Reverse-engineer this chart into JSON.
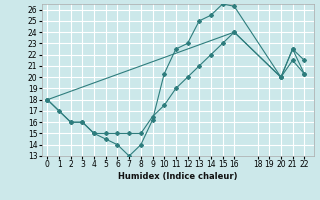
{
  "xlabel": "Humidex (Indice chaleur)",
  "bg_color": "#cce8ea",
  "grid_color": "#ffffff",
  "line_color": "#2e7d7d",
  "ylim": [
    13,
    26.5
  ],
  "xlim": [
    -0.5,
    22.8
  ],
  "yticks": [
    13,
    14,
    15,
    16,
    17,
    18,
    19,
    20,
    21,
    22,
    23,
    24,
    25,
    26
  ],
  "xticks": [
    0,
    1,
    2,
    3,
    4,
    5,
    6,
    7,
    8,
    9,
    10,
    11,
    12,
    13,
    14,
    15,
    16,
    18,
    19,
    20,
    21,
    22
  ],
  "line1_x": [
    0,
    1,
    2,
    3,
    4,
    5,
    6,
    7,
    8,
    9,
    10,
    11,
    12,
    13,
    14,
    15,
    16,
    20,
    21,
    22
  ],
  "line1_y": [
    18,
    17,
    16,
    16,
    15,
    14.5,
    14,
    13,
    14,
    16.2,
    20.3,
    22.5,
    23,
    25,
    25.5,
    26.5,
    26.3,
    20,
    21.5,
    20.3
  ],
  "line2_x": [
    0,
    2,
    3,
    4,
    5,
    6,
    7,
    8,
    9,
    10,
    11,
    12,
    13,
    14,
    15,
    16,
    20,
    21,
    22
  ],
  "line2_y": [
    18,
    16,
    16,
    15,
    15,
    15,
    15,
    15,
    16.5,
    17.5,
    19,
    20,
    21,
    22,
    23,
    24,
    20,
    22.5,
    21.5
  ],
  "line3_x": [
    0,
    16,
    20,
    21,
    22
  ],
  "line3_y": [
    18,
    24,
    20,
    22.5,
    20.3
  ]
}
